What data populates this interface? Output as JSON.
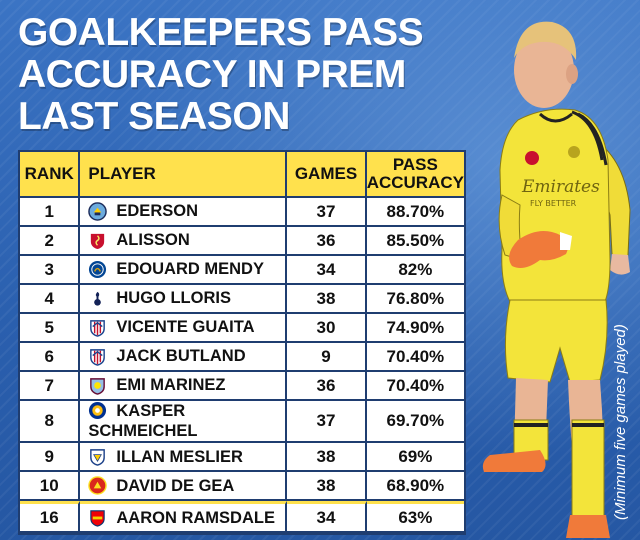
{
  "headline": {
    "line1": "GOALKEEPERS PASS",
    "line2": "ACCURACY IN PREM",
    "line3": "LAST SEASON"
  },
  "table": {
    "headers": {
      "rank": "RANK",
      "player": "PLAYER",
      "games": "GAMES",
      "accuracy": "PASS ACCURACY"
    },
    "rows": [
      {
        "rank": "1",
        "crest": "manchester-city-crest",
        "player": "EDERSON",
        "games": "37",
        "accuracy": "88.70%"
      },
      {
        "rank": "2",
        "crest": "liverpool-crest",
        "player": "ALISSON",
        "games": "36",
        "accuracy": "85.50%"
      },
      {
        "rank": "3",
        "crest": "chelsea-crest",
        "player": "EDOUARD MENDY",
        "games": "34",
        "accuracy": "82%"
      },
      {
        "rank": "4",
        "crest": "tottenham-crest",
        "player": "HUGO LLORIS",
        "games": "38",
        "accuracy": "76.80%"
      },
      {
        "rank": "5",
        "crest": "crystal-palace-crest",
        "player": "VICENTE GUAITA",
        "games": "30",
        "accuracy": "74.90%"
      },
      {
        "rank": "6",
        "crest": "crystal-palace-crest",
        "player": "JACK BUTLAND",
        "games": "9",
        "accuracy": "70.40%"
      },
      {
        "rank": "7",
        "crest": "aston-villa-crest",
        "player": "EMI MARINEZ",
        "games": "36",
        "accuracy": "70.40%"
      },
      {
        "rank": "8",
        "crest": "leicester-crest",
        "player": "KASPER SCHMEICHEL",
        "games": "37",
        "accuracy": "69.70%"
      },
      {
        "rank": "9",
        "crest": "leeds-crest",
        "player": "ILLAN MESLIER",
        "games": "38",
        "accuracy": "69%"
      },
      {
        "rank": "10",
        "crest": "manchester-united-crest",
        "player": "DAVID DE GEA",
        "games": "38",
        "accuracy": "68.90%"
      },
      {
        "rank": "16",
        "crest": "arsenal-crest",
        "player": "AARON RAMSDALE",
        "games": "34",
        "accuracy": "63%"
      }
    ]
  },
  "footnote": "(Minimum five games played)",
  "photo": {
    "shirt_text_1": "Emirates",
    "shirt_text_2": "FLY BETTER"
  },
  "colors": {
    "background": "#2f66b8",
    "header_fill": "#ffe14d",
    "cell_fill": "#ffffff",
    "grid": "#1f3d70",
    "kit_yellow": "#f3e43a"
  }
}
